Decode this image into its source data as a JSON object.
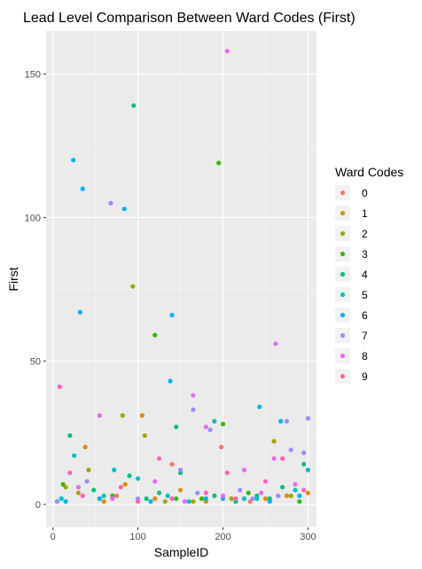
{
  "chart_data": {
    "type": "scatter",
    "title": "Lead Level Comparison Between Ward Codes (First)",
    "xlabel": "SampleID",
    "ylabel": "First",
    "xlim": [
      -8,
      310
    ],
    "ylim": [
      -8,
      165
    ],
    "xticks": [
      0,
      100,
      200,
      300
    ],
    "yticks": [
      0,
      50,
      100,
      150
    ],
    "grid": true,
    "legend": {
      "title": "Ward Codes",
      "placement": "right",
      "entries": [
        "0",
        "1",
        "2",
        "3",
        "4",
        "5",
        "6",
        "7",
        "8",
        "9"
      ]
    },
    "colors": {
      "0": "#F8766D",
      "1": "#D89000",
      "2": "#A3A500",
      "3": "#39B600",
      "4": "#00BF7D",
      "5": "#00BFC4",
      "6": "#00B0F6",
      "7": "#9590FF",
      "8": "#E76BF3",
      "9": "#FF62BC"
    },
    "series": [
      {
        "name": "0",
        "points": [
          [
            198,
            20
          ],
          [
            140,
            14
          ],
          [
            75,
            3
          ],
          [
            232,
            1
          ]
        ]
      },
      {
        "name": "1",
        "points": [
          [
            38,
            20
          ],
          [
            105,
            31
          ],
          [
            85,
            7
          ],
          [
            150,
            5
          ],
          [
            250,
            2
          ],
          [
            300,
            4
          ],
          [
            60,
            1
          ],
          [
            120,
            2
          ],
          [
            275,
            3
          ],
          [
            180,
            1
          ]
        ]
      },
      {
        "name": "2",
        "points": [
          [
            94,
            76
          ],
          [
            82,
            31
          ],
          [
            42,
            12
          ],
          [
            260,
            22
          ],
          [
            108,
            24
          ],
          [
            15,
            6
          ],
          [
            30,
            4
          ],
          [
            132,
            1
          ],
          [
            210,
            2
          ],
          [
            280,
            3
          ],
          [
            165,
            1
          ]
        ]
      },
      {
        "name": "3",
        "points": [
          [
            195,
            119
          ],
          [
            120,
            59
          ],
          [
            200,
            28
          ],
          [
            12,
            7
          ],
          [
            70,
            3
          ],
          [
            145,
            2
          ],
          [
            230,
            4
          ],
          [
            290,
            1
          ],
          [
            55,
            2
          ],
          [
            175,
            2
          ]
        ]
      },
      {
        "name": "4",
        "points": [
          [
            95,
            139
          ],
          [
            145,
            27
          ],
          [
            20,
            24
          ],
          [
            295,
            14
          ],
          [
            90,
            10
          ],
          [
            150,
            11
          ],
          [
            48,
            5
          ],
          [
            110,
            2
          ],
          [
            190,
            3
          ],
          [
            255,
            2
          ],
          [
            270,
            6
          ],
          [
            5,
            1
          ],
          [
            125,
            4
          ],
          [
            215,
            1
          ],
          [
            240,
            3
          ]
        ]
      },
      {
        "name": "5",
        "points": [
          [
            190,
            29
          ],
          [
            25,
            17
          ],
          [
            72,
            12
          ],
          [
            100,
            9
          ],
          [
            240,
            2
          ],
          [
            285,
            5
          ],
          [
            10,
            2
          ],
          [
            135,
            3
          ],
          [
            160,
            1
          ],
          [
            225,
            2
          ],
          [
            60,
            3
          ],
          [
            300,
            12
          ]
        ]
      },
      {
        "name": "6",
        "points": [
          [
            24,
            120
          ],
          [
            35,
            110
          ],
          [
            84,
            103
          ],
          [
            32,
            67
          ],
          [
            140,
            66
          ],
          [
            138,
            43
          ],
          [
            243,
            34
          ],
          [
            268,
            29
          ],
          [
            15,
            1
          ],
          [
            55,
            2
          ],
          [
            180,
            2
          ],
          [
            255,
            1
          ],
          [
            290,
            3
          ],
          [
            115,
            1
          ],
          [
            200,
            2
          ]
        ]
      },
      {
        "name": "7",
        "points": [
          [
            68,
            105
          ],
          [
            165,
            33
          ],
          [
            185,
            26
          ],
          [
            275,
            29
          ],
          [
            300,
            30
          ],
          [
            295,
            18
          ],
          [
            280,
            19
          ],
          [
            40,
            8
          ],
          [
            150,
            12
          ],
          [
            220,
            5
          ],
          [
            100,
            2
          ],
          [
            170,
            4
          ],
          [
            265,
            3
          ],
          [
            5,
            1
          ],
          [
            235,
            2
          ]
        ]
      },
      {
        "name": "8",
        "points": [
          [
            205,
            158
          ],
          [
            165,
            38
          ],
          [
            262,
            56
          ],
          [
            55,
            31
          ],
          [
            180,
            27
          ],
          [
            260,
            16
          ],
          [
            225,
            12
          ],
          [
            30,
            6
          ],
          [
            120,
            8
          ],
          [
            200,
            3
          ],
          [
            285,
            7
          ],
          [
            70,
            2
          ],
          [
            245,
            4
          ],
          [
            155,
            1
          ]
        ]
      },
      {
        "name": "9",
        "points": [
          [
            8,
            41
          ],
          [
            20,
            11
          ],
          [
            125,
            16
          ],
          [
            205,
            11
          ],
          [
            270,
            16
          ],
          [
            80,
            6
          ],
          [
            140,
            2
          ],
          [
            250,
            8
          ],
          [
            295,
            5
          ],
          [
            35,
            3
          ],
          [
            180,
            4
          ],
          [
            215,
            2
          ],
          [
            100,
            1
          ]
        ]
      }
    ]
  }
}
